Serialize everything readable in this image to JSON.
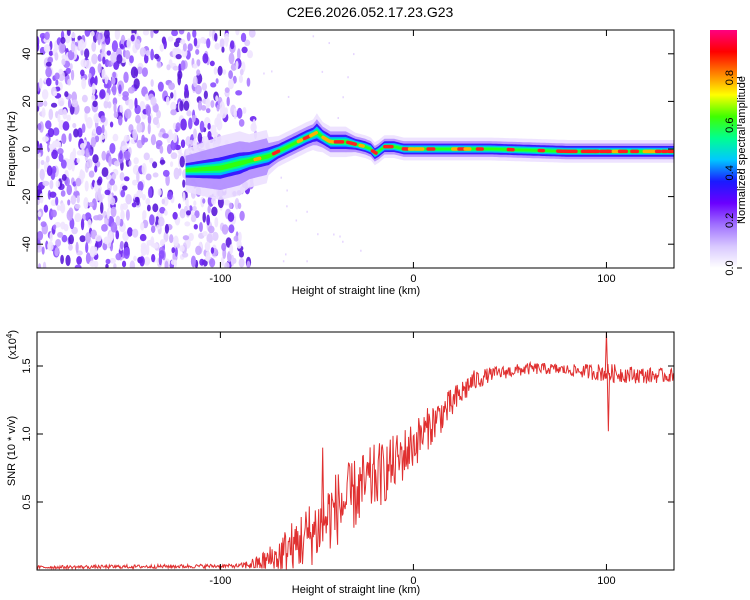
{
  "title": "C2E6.2026.052.17.23.G23",
  "chart_data": [
    {
      "type": "heatmap",
      "name": "spectrogram",
      "xlabel": "Height of straight line (km)",
      "ylabel": "Frequency (Hz)",
      "xlim": [
        -195,
        135
      ],
      "ylim": [
        -50,
        50
      ],
      "xticks": [
        -100,
        0,
        100
      ],
      "xtick_labels": [
        "-100",
        "0",
        "100"
      ],
      "yticks": [
        -40,
        -20,
        0,
        20,
        40
      ],
      "ytick_labels": [
        "-40",
        "-20",
        "0",
        "20",
        "40"
      ],
      "noise_region_x": [
        -195,
        -78
      ],
      "ridge": {
        "x": [
          -118,
          -100,
          -90,
          -85,
          -80,
          -75,
          -70,
          -65,
          -60,
          -55,
          -52,
          -50,
          -47,
          -45,
          -43,
          -40,
          -35,
          -30,
          -25,
          -22,
          -20,
          -18,
          -15,
          -10,
          -5,
          0,
          10,
          20,
          40,
          60,
          80,
          100,
          120,
          135
        ],
        "freq": [
          -9,
          -8,
          -6,
          -5,
          -4,
          -3,
          -1,
          1,
          3,
          5,
          6,
          7,
          5,
          4,
          3,
          3,
          3,
          2,
          1,
          0,
          -2,
          -1,
          1,
          1,
          0,
          0,
          0,
          0,
          0,
          -0.5,
          -1,
          -1,
          -1,
          -1
        ],
        "width": [
          4,
          6,
          6,
          5,
          5,
          5,
          4,
          4,
          4,
          4,
          4,
          5,
          4,
          4,
          4,
          4,
          4,
          3,
          3,
          3,
          3,
          3,
          3,
          3,
          3,
          3,
          3,
          3,
          3,
          3,
          3,
          3,
          3,
          3
        ]
      },
      "colorbar": {
        "label": "Normalized spectral amplitude",
        "range": [
          0,
          1
        ],
        "ticks": [
          0.0,
          0.2,
          0.4,
          0.6,
          0.8
        ],
        "tick_labels": [
          "0.0",
          "0.2",
          "0.4",
          "0.6",
          "0.8"
        ],
        "colors": [
          "#ffffff",
          "#d8c8ff",
          "#a070ff",
          "#6a00ff",
          "#1a1aff",
          "#00c8ff",
          "#00ff90",
          "#40ff00",
          "#ffff00",
          "#ff8000",
          "#ff0000",
          "#ff0080"
        ]
      }
    },
    {
      "type": "line",
      "name": "snr",
      "xlabel": "Height of straight line (km)",
      "ylabel": "SNR (10 * v/v)",
      "y_multiplier": "(x10",
      "y_multiplier_exp": "4",
      "y_multiplier_close": ")",
      "xlim": [
        -195,
        135
      ],
      "ylim": [
        0,
        1.75
      ],
      "xticks": [
        -100,
        0,
        100
      ],
      "xtick_labels": [
        "-100",
        "0",
        "100"
      ],
      "yticks": [
        0.5,
        1.0,
        1.5
      ],
      "ytick_labels": [
        "0.5",
        "1.0",
        "1.5"
      ],
      "color": "#e03030",
      "envelope": {
        "x": [
          -195,
          -90,
          -80,
          -70,
          -60,
          -50,
          -45,
          -40,
          -35,
          -30,
          -25,
          -20,
          -15,
          -10,
          -5,
          0,
          5,
          10,
          15,
          20,
          25,
          30,
          40,
          50,
          60,
          70,
          80,
          90,
          100,
          110,
          120,
          135
        ],
        "y": [
          0.02,
          0.03,
          0.05,
          0.1,
          0.2,
          0.3,
          0.38,
          0.45,
          0.5,
          0.56,
          0.62,
          0.68,
          0.72,
          0.78,
          0.85,
          0.92,
          1.0,
          1.08,
          1.15,
          1.22,
          1.3,
          1.38,
          1.44,
          1.46,
          1.48,
          1.48,
          1.47,
          1.46,
          1.45,
          1.44,
          1.43,
          1.43
        ]
      },
      "noise": {
        "x": [
          -195,
          -90,
          -80,
          -60,
          -40,
          -20,
          0,
          20,
          40,
          80,
          100,
          120,
          135
        ],
        "amp": [
          0.012,
          0.015,
          0.06,
          0.22,
          0.28,
          0.25,
          0.18,
          0.12,
          0.05,
          0.04,
          0.07,
          0.06,
          0.05
        ]
      },
      "spikes": [
        {
          "x": -47,
          "y": 0.9
        },
        {
          "x": 100,
          "y": 1.75
        },
        {
          "x": 101,
          "y": 1.02
        }
      ]
    }
  ]
}
